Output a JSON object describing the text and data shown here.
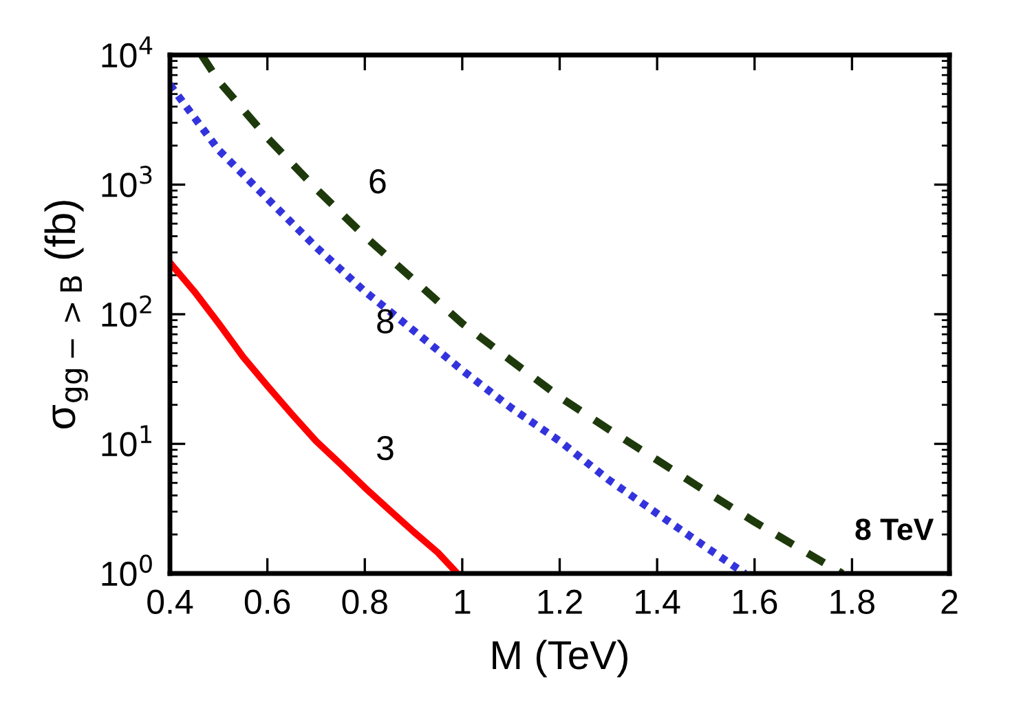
{
  "chart_data": {
    "type": "line",
    "xlabel": "M (TeV)",
    "ylabel": "σ$_{gg−>B}$ (fb)",
    "log": "y",
    "xlim": [
      0.4,
      2
    ],
    "xticks": [
      0.4,
      0.6,
      0.8,
      1,
      1.2,
      1.4,
      1.6,
      1.8,
      2
    ],
    "ylim": [
      1,
      10000
    ],
    "yticks": [
      {
        "value": 1,
        "label": "10$^{0}$"
      },
      {
        "value": 10,
        "label": "10$^{1}$"
      },
      {
        "value": 100,
        "label": "10$^{2}$"
      },
      {
        "value": 1000,
        "label": "10$^{3}$"
      },
      {
        "value": 10000,
        "label": "10$^{4}$"
      }
    ],
    "grid": false,
    "series": [
      {
        "name": "3",
        "color": "#ff0000",
        "line_style": "solid",
        "x": [
          0.4,
          0.45,
          0.5,
          0.55,
          0.6,
          0.65,
          0.7,
          0.75,
          0.8,
          0.85,
          0.9,
          0.95,
          0.99
        ],
        "values": [
          250,
          150,
          85,
          47,
          28,
          17,
          10.5,
          7,
          4.6,
          3.1,
          2.1,
          1.45,
          1.0
        ]
      },
      {
        "name": "8",
        "color": "#3333dd",
        "line_style": "dotted",
        "x": [
          0.4,
          0.5,
          0.6,
          0.7,
          0.8,
          0.9,
          1.0,
          1.1,
          1.2,
          1.3,
          1.4,
          1.5,
          1.58
        ],
        "values": [
          5900,
          1850,
          780,
          330,
          150,
          75,
          37,
          19,
          10.5,
          5.3,
          2.9,
          1.6,
          1.0
        ]
      },
      {
        "name": "6",
        "color": "#1e3a0c",
        "line_style": "dashed",
        "x": [
          0.465,
          0.5,
          0.6,
          0.7,
          0.8,
          0.9,
          1.0,
          1.1,
          1.2,
          1.3,
          1.4,
          1.5,
          1.6,
          1.7,
          1.78
        ],
        "values": [
          10000,
          6300,
          2300,
          930,
          400,
          185,
          85,
          44,
          23,
          13,
          7.5,
          4.3,
          2.5,
          1.5,
          1.0
        ]
      }
    ],
    "annotations": [
      "8 TeV"
    ]
  }
}
